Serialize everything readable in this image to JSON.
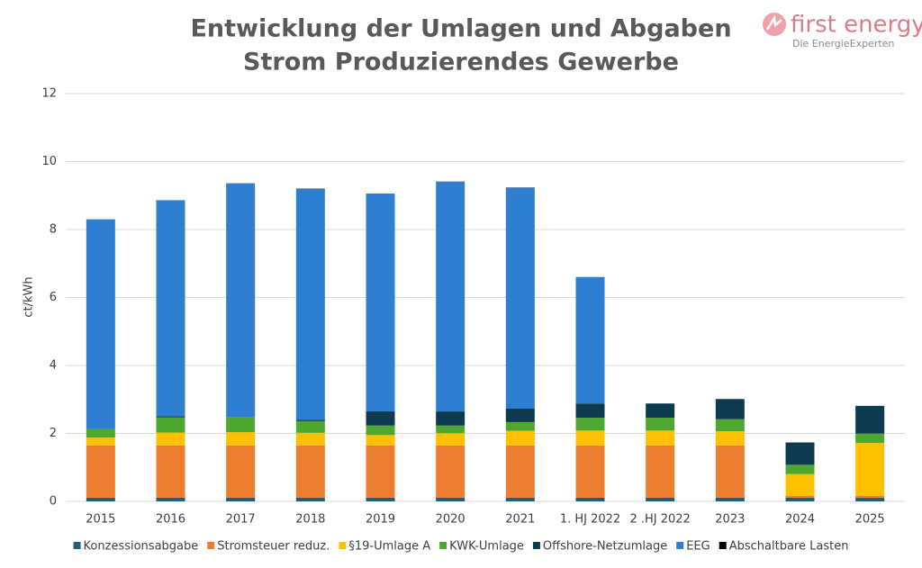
{
  "chart_data": {
    "type": "stacked-bar",
    "title": "Entwicklung der Umlagen und Abgaben",
    "subtitle": "Strom Produzierendes Gewerbe",
    "y_label": "ct/kWh",
    "categories": [
      "2015",
      "2016",
      "2017",
      "2018",
      "2019",
      "2020",
      "2021",
      "1. HJ 2022",
      "2 .HJ 2022",
      "2023",
      "2024",
      "2025"
    ],
    "ylim": [
      0,
      12
    ],
    "yticks": [
      0,
      2,
      4,
      6,
      8,
      10,
      12
    ],
    "grid": true,
    "legend": "bottom",
    "series": [
      {
        "name": "Konzessionsabgabe",
        "color": "#1f5f7a",
        "values": [
          0.11,
          0.11,
          0.11,
          0.11,
          0.11,
          0.11,
          0.11,
          0.11,
          0.11,
          0.11,
          0.11,
          0.11
        ]
      },
      {
        "name": "Stromsteuer reduz.",
        "color": "#ed7d31",
        "values": [
          1.537,
          1.537,
          1.537,
          1.537,
          1.537,
          1.537,
          1.537,
          1.537,
          1.537,
          1.537,
          0.05,
          0.05
        ]
      },
      {
        "name": "§19-Umlage A",
        "color": "#ffc000",
        "values": [
          0.23,
          0.378,
          0.388,
          0.37,
          0.305,
          0.358,
          0.432,
          0.437,
          0.437,
          0.417,
          0.643,
          1.558
        ]
      },
      {
        "name": "KWK-Umlage",
        "color": "#4ea72e",
        "values": [
          0.254,
          0.445,
          0.438,
          0.345,
          0.28,
          0.226,
          0.254,
          0.378,
          0.378,
          0.357,
          0.275,
          0.277
        ]
      },
      {
        "name": "Offshore-Netzumlage",
        "color": "#0e3a4f",
        "values": [
          0,
          0.04,
          0,
          0.037,
          0.416,
          0.416,
          0.395,
          0.419,
          0.419,
          0.591,
          0.656,
          0.816
        ]
      },
      {
        "name": "EEG",
        "color": "#2e7fd1",
        "values": [
          6.17,
          6.354,
          6.88,
          6.792,
          6.405,
          6.756,
          6.5,
          3.723,
          0,
          0,
          0,
          0
        ]
      },
      {
        "name": "Abschaltbare Lasten",
        "color": "#000000",
        "values": [
          0,
          0,
          0.006,
          0.011,
          0.005,
          0.007,
          0.009,
          0,
          0,
          0,
          0,
          0
        ]
      }
    ]
  },
  "logo": {
    "name": "first energy",
    "tagline": "Die EnergieExperten"
  }
}
